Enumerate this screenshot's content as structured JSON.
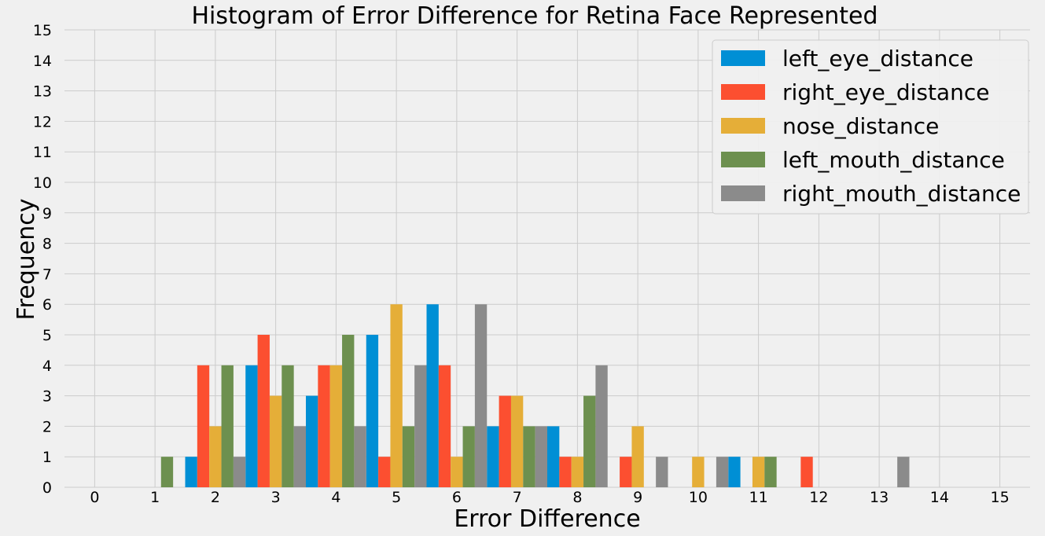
{
  "chart_data": {
    "type": "bar",
    "title": "Histogram of Error Difference for Retina Face Represented",
    "xlabel": "Error Difference",
    "ylabel": "Frequency",
    "xlim": [
      -0.5,
      15.5
    ],
    "ylim": [
      0,
      15
    ],
    "x_ticks": [
      0,
      1,
      2,
      3,
      4,
      5,
      6,
      7,
      8,
      9,
      10,
      11,
      12,
      13,
      14,
      15
    ],
    "y_ticks": [
      0,
      1,
      2,
      3,
      4,
      5,
      6,
      7,
      8,
      9,
      10,
      11,
      12,
      13,
      14,
      15
    ],
    "grid": true,
    "legend_position": "top-right",
    "bins": [
      0,
      1,
      2,
      3,
      4,
      5,
      6,
      7,
      8,
      9,
      10,
      11,
      12,
      13
    ],
    "series": [
      {
        "name": "left_eye_distance",
        "color": "#008fd5",
        "values": [
          0,
          1,
          4,
          3,
          5,
          6,
          2,
          2,
          0,
          0,
          1,
          0,
          0,
          0
        ]
      },
      {
        "name": "right_eye_distance",
        "color": "#fc4f30",
        "values": [
          0,
          4,
          5,
          4,
          1,
          4,
          3,
          1,
          1,
          0,
          0,
          1,
          0,
          0
        ]
      },
      {
        "name": "nose_distance",
        "color": "#e5ae38",
        "values": [
          0,
          2,
          3,
          4,
          6,
          1,
          3,
          1,
          2,
          1,
          1,
          0,
          0,
          0
        ]
      },
      {
        "name": "left_mouth_distance",
        "color": "#6d904f",
        "values": [
          1,
          4,
          4,
          5,
          2,
          2,
          2,
          3,
          0,
          0,
          1,
          0,
          0,
          0
        ]
      },
      {
        "name": "right_mouth_distance",
        "color": "#8b8b8b",
        "values": [
          0,
          1,
          2,
          2,
          4,
          6,
          2,
          4,
          1,
          1,
          0,
          0,
          1,
          0
        ]
      }
    ]
  }
}
